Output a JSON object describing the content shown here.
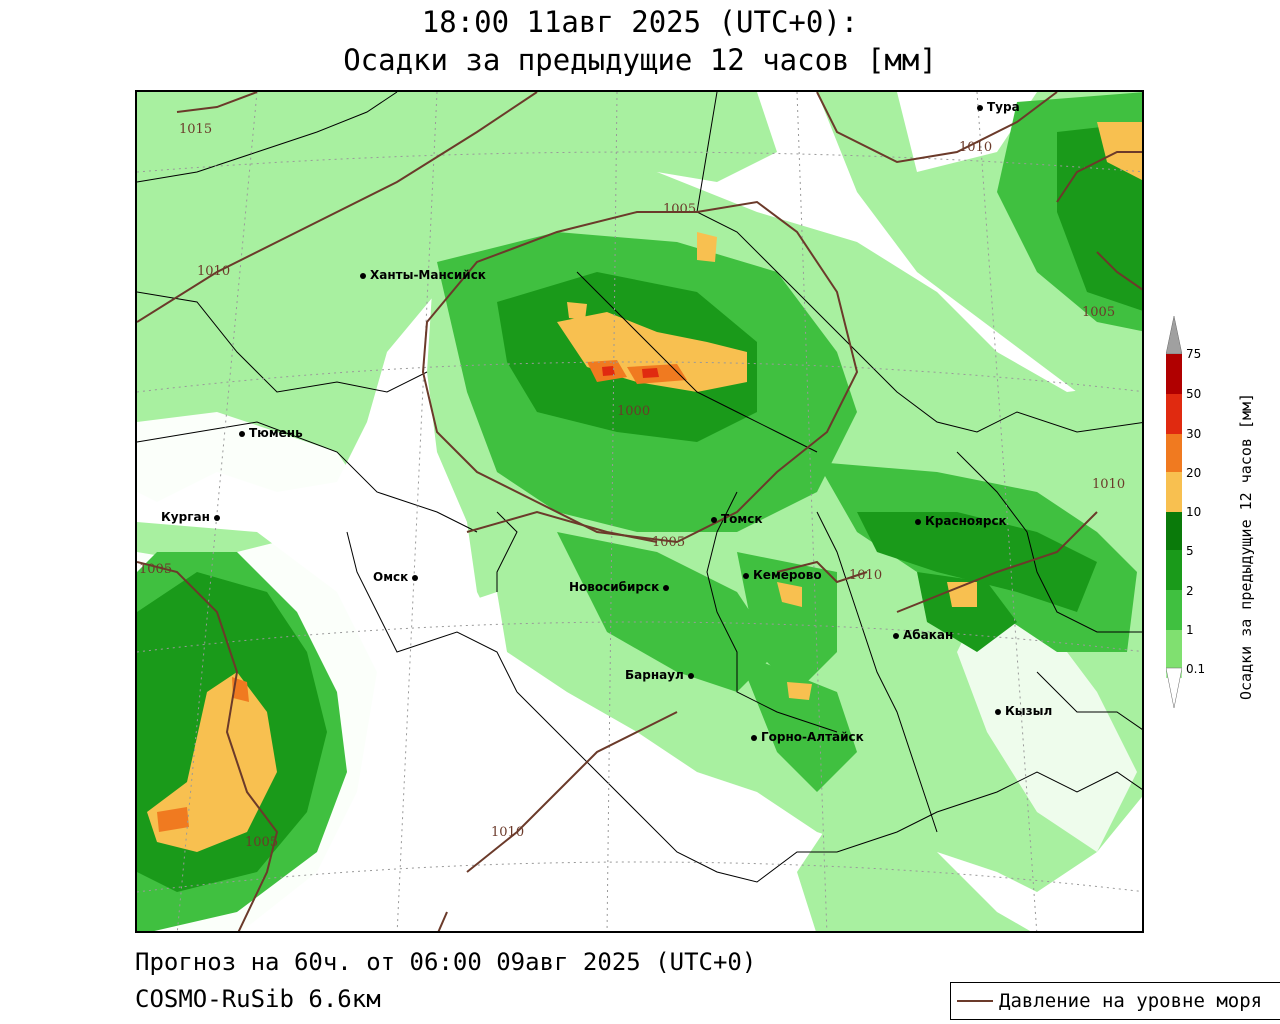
{
  "header": {
    "title_line1": "18:00 11авг 2025 (UTC+0):",
    "title_line2": "Осадки за предыдущие 12 часов [мм]"
  },
  "cities": [
    {
      "name": "Тура"
    },
    {
      "name": "Ханты-Мансийск"
    },
    {
      "name": "Тюмень"
    },
    {
      "name": "Курган"
    },
    {
      "name": "Омск"
    },
    {
      "name": "Томск"
    },
    {
      "name": "Красноярск"
    },
    {
      "name": "Новосибирск"
    },
    {
      "name": "Кемерово"
    },
    {
      "name": "Абакан"
    },
    {
      "name": "Барнаул"
    },
    {
      "name": "Кызыл"
    },
    {
      "name": "Горно-Алтайск"
    }
  ],
  "isobar_labels": [
    "1015",
    "1010",
    "1010",
    "1005",
    "1000",
    "1005",
    "1005",
    "1010",
    "1010",
    "1005",
    "1005",
    "1010"
  ],
  "colorbar": {
    "title": "Осадки за предыдущие 12 часов [мм]",
    "levels": [
      "0.1",
      "1",
      "2",
      "5",
      "10",
      "20",
      "30",
      "50",
      "75"
    ],
    "colors": [
      "#ffffff",
      "#a8f0a0",
      "#80e070",
      "#40c040",
      "#1a9a1a",
      "#0a7a0a",
      "#f8c050",
      "#f07a20",
      "#e02a10",
      "#b00000",
      "#a0a0a0"
    ]
  },
  "footer": {
    "forecast": "Прогноз на 60ч. от 06:00 09авг 2025 (UTC+0)",
    "model": "COSMO-RuSib 6.6км"
  },
  "line_legend": {
    "label": "Давление на уровне моря",
    "color": "#6b3a2a"
  }
}
